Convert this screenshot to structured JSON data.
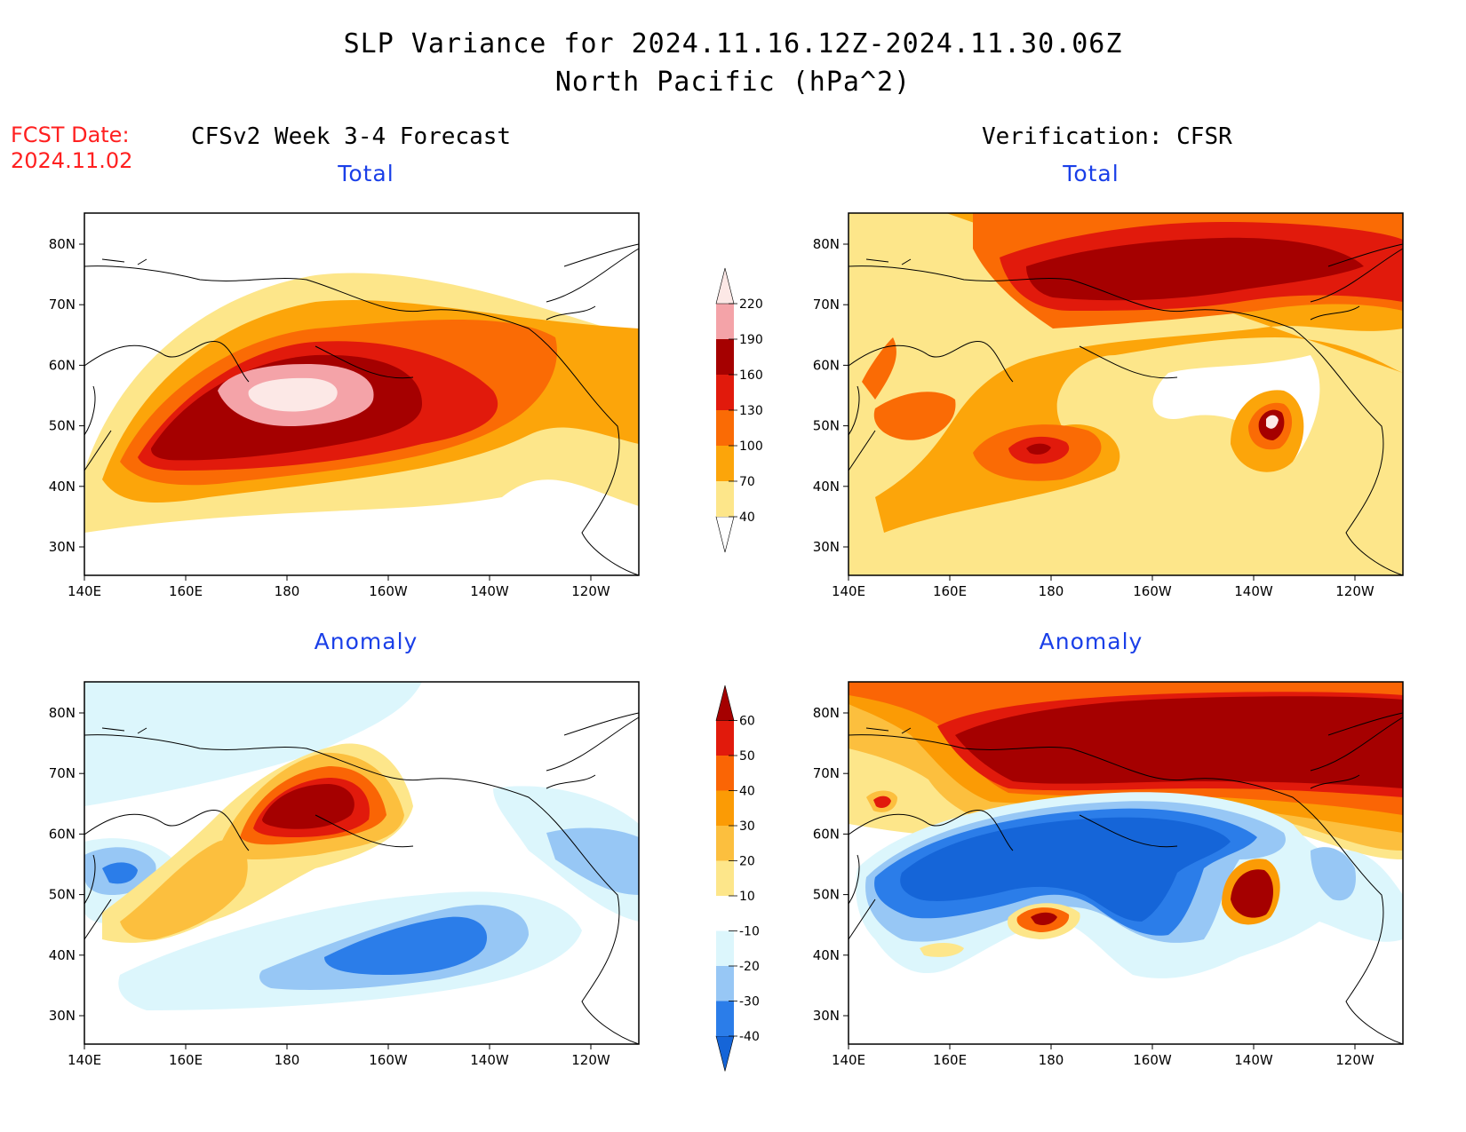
{
  "header": {
    "title_line1": "SLP Variance for 2024.11.16.12Z-2024.11.30.06Z",
    "title_line2": "North Pacific (hPa^2)",
    "fcst_label": "FCST Date:",
    "fcst_date": "2024.11.02"
  },
  "columns": {
    "left": "CFSv2 Week 3-4 Forecast",
    "right": "Verification: CFSR"
  },
  "panels": [
    {
      "id": "fcst-total",
      "title": "Total"
    },
    {
      "id": "verif-total",
      "title": "Total"
    },
    {
      "id": "fcst-anomaly",
      "title": "Anomaly"
    },
    {
      "id": "verif-anomaly",
      "title": "Anomaly"
    }
  ],
  "axes": {
    "lat_labels": [
      "30N",
      "40N",
      "50N",
      "60N",
      "70N",
      "80N"
    ],
    "lon_labels": [
      "140E",
      "160E",
      "180",
      "160W",
      "140W",
      "120W"
    ]
  },
  "colorbars": {
    "total": {
      "levels": [
        "40",
        "70",
        "100",
        "130",
        "160",
        "190",
        "220"
      ],
      "colors": [
        "#ffffff",
        "#fde68a",
        "#fca50a",
        "#fa6b05",
        "#e11a0c",
        "#a50000",
        "#f4a3a8",
        "#fce8e6"
      ]
    },
    "anomaly": {
      "levels": [
        "-40",
        "-30",
        "-20",
        "-10",
        "10",
        "20",
        "30",
        "40",
        "50",
        "60"
      ],
      "colors": [
        "#1565d8",
        "#2b7de9",
        "#97c7f5",
        "#dcf6fc",
        "#ffffff",
        "#fde68a",
        "#fcbf3e",
        "#fb9b05",
        "#fa6505",
        "#e11a0c",
        "#a50000"
      ]
    }
  },
  "colors": {
    "title_text": "#000000",
    "fcst_text": "#ff2020",
    "panel_title": "#1a3fe8"
  }
}
